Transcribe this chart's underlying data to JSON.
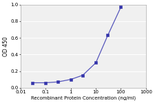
{
  "x": [
    0.03,
    0.1,
    0.3,
    1.0,
    3.0,
    10.0,
    30.0,
    100.0
  ],
  "y": [
    0.06,
    0.06,
    0.07,
    0.1,
    0.15,
    0.3,
    0.63,
    0.97
  ],
  "line_color": "#5555bb",
  "marker_color": "#3333aa",
  "marker_style": "s",
  "marker_size": 2.5,
  "line_width": 0.9,
  "xlabel": "Recombinant Protein Concentration (ng/ml)",
  "ylabel": "OD 450",
  "xlim_log": [
    0.01,
    1000
  ],
  "ylim": [
    0.0,
    1.0
  ],
  "yticks": [
    0.0,
    0.2,
    0.4,
    0.6,
    0.8,
    1.0
  ],
  "xticks": [
    0.01,
    0.1,
    1,
    10,
    100,
    1000
  ],
  "xtick_labels": [
    "0.01",
    "0.1",
    "1",
    "10",
    "100",
    "1000"
  ],
  "axis_fontsize": 5.0,
  "tick_fontsize": 5.0,
  "ylabel_fontsize": 5.5,
  "background_color": "#f0f0f0",
  "grid_color": "#ffffff",
  "grid_linewidth": 0.7
}
